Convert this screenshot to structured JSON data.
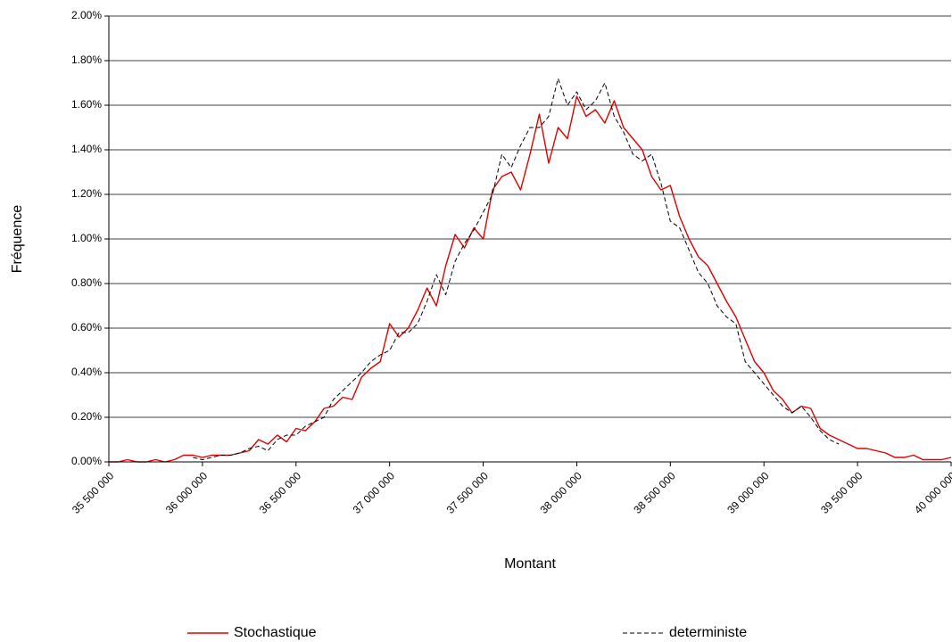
{
  "chart_data": {
    "type": "line",
    "xlabel": "Montant",
    "ylabel": "Fréquence",
    "x": [
      35500000,
      35550000,
      35600000,
      35650000,
      35700000,
      35750000,
      35800000,
      35850000,
      35900000,
      35950000,
      36000000,
      36050000,
      36100000,
      36150000,
      36200000,
      36250000,
      36300000,
      36350000,
      36400000,
      36450000,
      36500000,
      36550000,
      36600000,
      36650000,
      36700000,
      36750000,
      36800000,
      36850000,
      36900000,
      36950000,
      37000000,
      37050000,
      37100000,
      37150000,
      37200000,
      37250000,
      37300000,
      37350000,
      37400000,
      37450000,
      37500000,
      37550000,
      37600000,
      37650000,
      37700000,
      37750000,
      37800000,
      37850000,
      37900000,
      37950000,
      38000000,
      38050000,
      38100000,
      38150000,
      38200000,
      38250000,
      38300000,
      38350000,
      38400000,
      38450000,
      38500000,
      38550000,
      38600000,
      38650000,
      38700000,
      38750000,
      38800000,
      38850000,
      38900000,
      38950000,
      39000000,
      39050000,
      39100000,
      39150000,
      39200000,
      39250000,
      39300000,
      39350000,
      39400000,
      39450000,
      39500000,
      39550000,
      39600000,
      39650000,
      39700000,
      39750000,
      39800000,
      39850000,
      39900000,
      39950000,
      40000000
    ],
    "series": [
      {
        "name": "Stochastique",
        "color": "#e00000",
        "dash": false,
        "values": [
          0,
          0,
          0.01,
          0,
          0,
          0.01,
          0,
          0.01,
          0.03,
          0.03,
          0.02,
          0.03,
          0.03,
          0.03,
          0.04,
          0.05,
          0.1,
          0.08,
          0.12,
          0.09,
          0.15,
          0.14,
          0.18,
          0.24,
          0.25,
          0.29,
          0.28,
          0.38,
          0.42,
          0.45,
          0.62,
          0.56,
          0.6,
          0.68,
          0.78,
          0.7,
          0.88,
          1.02,
          0.96,
          1.05,
          1,
          1.22,
          1.28,
          1.3,
          1.22,
          1.38,
          1.56,
          1.34,
          1.5,
          1.45,
          1.64,
          1.55,
          1.58,
          1.52,
          1.62,
          1.5,
          1.45,
          1.4,
          1.28,
          1.22,
          1.24,
          1.1,
          1,
          0.92,
          0.88,
          0.8,
          0.72,
          0.65,
          0.55,
          0.45,
          0.4,
          0.32,
          0.28,
          0.22,
          0.25,
          0.24,
          0.15,
          0.12,
          0.1,
          0.08,
          0.06,
          0.06,
          0.05,
          0.04,
          0.02,
          0.02,
          0.03,
          0.01,
          0.01,
          0.01,
          0.02
        ]
      },
      {
        "name": "deterministe",
        "color": "#000000",
        "dash": true,
        "values": [
          null,
          null,
          null,
          null,
          null,
          null,
          null,
          null,
          null,
          0.02,
          0.01,
          0.02,
          0.03,
          0.03,
          0.04,
          0.06,
          0.07,
          0.05,
          0.1,
          0.12,
          0.12,
          0.16,
          0.18,
          0.2,
          0.28,
          0.32,
          0.36,
          0.4,
          0.45,
          0.48,
          0.5,
          0.58,
          0.58,
          0.62,
          0.72,
          0.84,
          0.75,
          0.9,
          0.98,
          1.04,
          1.12,
          1.2,
          1.38,
          1.32,
          1.42,
          1.5,
          1.5,
          1.55,
          1.72,
          1.6,
          1.66,
          1.58,
          1.62,
          1.7,
          1.55,
          1.48,
          1.38,
          1.35,
          1.38,
          1.25,
          1.08,
          1.05,
          0.95,
          0.85,
          0.8,
          0.7,
          0.65,
          0.62,
          0.45,
          0.4,
          0.35,
          0.3,
          0.25,
          0.22,
          0.25,
          0.2,
          0.14,
          0.1,
          0.08,
          null,
          null,
          null,
          null,
          null,
          null,
          null,
          null,
          null,
          null,
          null,
          null
        ]
      }
    ],
    "xlim": [
      35500000,
      40000000
    ],
    "xticks": [
      {
        "value": 35500000,
        "label": "35 500 000"
      },
      {
        "value": 36000000,
        "label": "36 000 000"
      },
      {
        "value": 36500000,
        "label": "36 500 000"
      },
      {
        "value": 37000000,
        "label": "37 000 000"
      },
      {
        "value": 37500000,
        "label": "37 500 000"
      },
      {
        "value": 38000000,
        "label": "38 000 000"
      },
      {
        "value": 38500000,
        "label": "38 500 000"
      },
      {
        "value": 39000000,
        "label": "39 000 000"
      },
      {
        "value": 39500000,
        "label": "39 500 000"
      },
      {
        "value": 40000000,
        "label": "40 000 000"
      }
    ],
    "ylim": [
      0,
      2
    ],
    "yticks": [
      {
        "value": 0,
        "label": "0.00%"
      },
      {
        "value": 0.2,
        "label": "0.20%"
      },
      {
        "value": 0.4,
        "label": "0.40%"
      },
      {
        "value": 0.6,
        "label": "0.60%"
      },
      {
        "value": 0.8,
        "label": "0.80%"
      },
      {
        "value": 1,
        "label": "1.00%"
      },
      {
        "value": 1.2,
        "label": "1.20%"
      },
      {
        "value": 1.4,
        "label": "1.40%"
      },
      {
        "value": 1.6,
        "label": "1.60%"
      },
      {
        "value": 1.8,
        "label": "1.80%"
      },
      {
        "value": 2,
        "label": "2.00%"
      }
    ],
    "grid": true,
    "legend": "bottom"
  }
}
